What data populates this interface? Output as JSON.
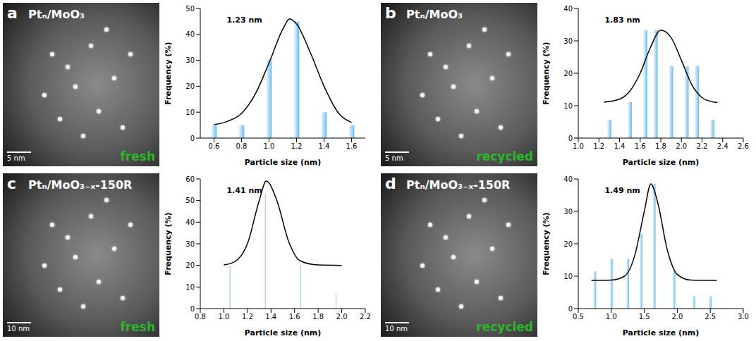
{
  "chart_data": [
    {
      "panel": "a",
      "title": "Ptₙ/MoO₃",
      "condition": "fresh",
      "scale_bar": "5 nm",
      "type": "bar",
      "x": [
        0.6,
        0.8,
        1.0,
        1.2,
        1.4,
        1.6
      ],
      "values": [
        5,
        5,
        30,
        45,
        10,
        5
      ],
      "fit": {
        "x": [
          0.6,
          0.7,
          0.8,
          0.9,
          1.0,
          1.1,
          1.15,
          1.2,
          1.3,
          1.4,
          1.5,
          1.6
        ],
        "values": [
          5.2,
          6.5,
          9.5,
          17,
          29,
          42,
          46,
          44,
          33,
          20,
          10,
          6
        ]
      },
      "annotation": "1.23 nm",
      "color": "#6cbcec",
      "xlabel": "Particle size (nm)",
      "ylabel": "Frequency (%)",
      "xlim": [
        0.5,
        1.7
      ],
      "xticks": [
        0.6,
        0.8,
        {
          "value": 1.0,
          "label": "1.0"
        },
        1.2,
        1.4,
        1.6
      ],
      "ylim": [
        0,
        50
      ],
      "yticks": [
        0,
        10,
        20,
        30,
        40,
        50
      ]
    },
    {
      "panel": "b",
      "title": "Ptₙ/MoO₃",
      "condition": "recycled",
      "scale_bar": "5 nm",
      "type": "bar",
      "x": [
        1.3,
        1.5,
        1.65,
        1.75,
        1.9,
        2.05,
        2.15,
        2.3
      ],
      "values": [
        5.6,
        11.1,
        33.3,
        33.3,
        22.2,
        22.2,
        22.2,
        5.6
      ],
      "fit": {
        "x": [
          1.25,
          1.4,
          1.5,
          1.6,
          1.7,
          1.8,
          1.9,
          2.0,
          2.1,
          2.2,
          2.3,
          2.35
        ],
        "values": [
          11.1,
          12,
          14.5,
          20,
          28,
          33.3,
          31,
          24,
          16.5,
          12.5,
          11.2,
          11
        ]
      },
      "annotation": "1.83 nm",
      "color": "#6cbcec",
      "xlabel": "Particle size (nm)",
      "ylabel": "Frequency (%)",
      "xlim": [
        1.0,
        2.6
      ],
      "xticks": [
        {
          "value": 1.0,
          "label": "1.0"
        },
        1.2,
        1.4,
        1.6,
        1.8,
        {
          "value": 2.0,
          "label": "2.0"
        },
        2.2,
        2.4,
        2.6
      ],
      "ylim": [
        0,
        40
      ],
      "yticks": [
        0,
        10,
        20,
        30,
        40
      ]
    },
    {
      "panel": "c",
      "title": "Ptₙ/MoO₃₋ₓ-150R",
      "condition": "fresh",
      "scale_bar": "10 nm",
      "type": "bar",
      "x": [
        1.05,
        1.35,
        1.65,
        1.95
      ],
      "values": [
        20,
        53.3,
        20,
        6.7
      ],
      "fit": {
        "x": [
          1.0,
          1.1,
          1.2,
          1.3,
          1.36,
          1.45,
          1.55,
          1.65,
          1.8,
          2.0
        ],
        "values": [
          20.2,
          22,
          30,
          50,
          59,
          50,
          31,
          22,
          20.2,
          20
        ]
      },
      "annotation": "1.41 nm",
      "color": "#6cbcec",
      "xlabel": "Particle size (nm)",
      "ylabel": "Frequency (%)",
      "xlim": [
        0.8,
        2.2
      ],
      "xticks": [
        0.8,
        {
          "value": 1.0,
          "label": "1.0"
        },
        1.2,
        1.4,
        1.6,
        1.8,
        {
          "value": 2.0,
          "label": "2.0"
        },
        2.2
      ],
      "ylim": [
        0,
        60
      ],
      "yticks": [
        0,
        10,
        20,
        30,
        40,
        50,
        60
      ]
    },
    {
      "panel": "d",
      "title": "Ptₙ/MoO₃₋ₓ-150R",
      "condition": "recycled",
      "scale_bar": "10 nm",
      "type": "bar",
      "x": [
        0.75,
        1.0,
        1.25,
        1.45,
        1.65,
        1.95,
        2.25,
        2.5
      ],
      "values": [
        11.5,
        15.4,
        15.4,
        23.1,
        38.5,
        11.5,
        3.8,
        3.8
      ],
      "fit": {
        "x": [
          0.7,
          1.0,
          1.2,
          1.35,
          1.5,
          1.6,
          1.7,
          1.85,
          2.0,
          2.2,
          2.6
        ],
        "values": [
          8.7,
          8.8,
          10,
          16,
          30,
          38.5,
          33,
          18,
          10.5,
          8.8,
          8.7
        ]
      },
      "annotation": "1.49 nm",
      "color": "#6cbcec",
      "xlabel": "Particle size (nm)",
      "ylabel": "Frequency (%)",
      "xlim": [
        0.5,
        3.0
      ],
      "xticks": [
        0.5,
        {
          "value": 1.0,
          "label": "1.0"
        },
        1.5,
        {
          "value": 2.0,
          "label": "2.0"
        },
        2.5,
        {
          "value": 3.0,
          "label": "3.0"
        }
      ],
      "ylim": [
        0,
        40
      ],
      "yticks": [
        0,
        10,
        20,
        30,
        40
      ]
    }
  ]
}
